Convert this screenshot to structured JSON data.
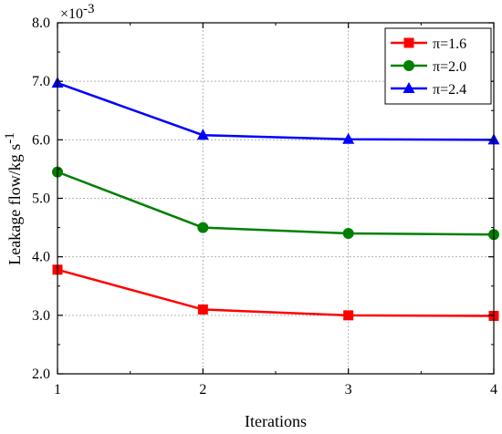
{
  "chart_data": {
    "type": "line",
    "xlabel": "Iterations",
    "ylabel_main": "Leakage flow/kg s",
    "ylabel_superscript": "-1",
    "y_multiplier_base": "×10",
    "y_multiplier_exp": "-3",
    "x": [
      1,
      2,
      3,
      4
    ],
    "x_ticks": [
      "1",
      "2",
      "3",
      "4"
    ],
    "xlim": [
      1,
      4
    ],
    "ylim": [
      2.0,
      8.0
    ],
    "y_ticks": [
      "2.0",
      "3.0",
      "4.0",
      "5.0",
      "6.0",
      "7.0",
      "8.0"
    ],
    "grid": true,
    "legend_position": "top-right",
    "series": [
      {
        "name": "π=1.6",
        "color": "#ff0000",
        "marker": "square",
        "values": [
          3.78,
          3.1,
          3.0,
          2.99
        ]
      },
      {
        "name": "π=2.0",
        "color": "#008000",
        "marker": "circle",
        "values": [
          5.45,
          4.5,
          4.4,
          4.38
        ]
      },
      {
        "name": "π=2.4",
        "color": "#0000ff",
        "marker": "triangle",
        "values": [
          6.97,
          6.08,
          6.01,
          6.0
        ]
      }
    ]
  }
}
